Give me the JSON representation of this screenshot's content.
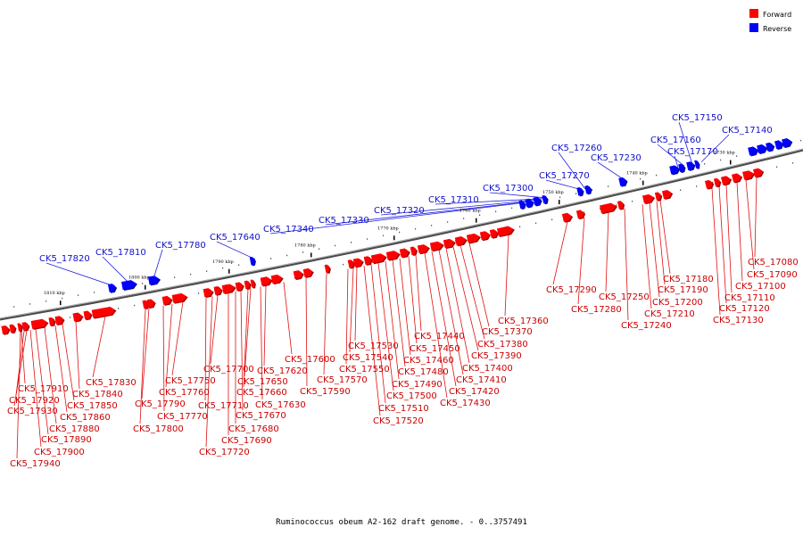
{
  "title": "Ruminococcus obeum A2-162 draft genome. - 0..3757491",
  "legend": [
    {
      "label": "Forward",
      "color": "#ff0000"
    },
    {
      "label": "Reverse",
      "color": "#0000ff"
    }
  ],
  "colors": {
    "forward": "#ff0000",
    "reverse": "#0000ff",
    "backbone": "#808080"
  },
  "scale_labels": [
    "1730 kbp",
    "1740 kbp",
    "1750 kbp",
    "1760 kbp",
    "1770 kbp",
    "1780 kbp",
    "1790 kbp",
    "1800 kbp",
    "1810 kbp"
  ],
  "reverse_labels": [
    "CK5_17820",
    "CK5_17810",
    "CK5_17780",
    "CK5_17640",
    "CK5_17340",
    "CK5_17330",
    "CK5_17320",
    "CK5_17310",
    "CK5_17300",
    "CK5_17270",
    "CK5_17260",
    "CK5_17230",
    "CK5_17170",
    "CK5_17160",
    "CK5_17150",
    "CK5_17140"
  ],
  "forward_labels": [
    "CK5_17910",
    "CK5_17920",
    "CK5_17930",
    "CK5_17940",
    "CK5_17900",
    "CK5_17890",
    "CK5_17880",
    "CK5_17860",
    "CK5_17850",
    "CK5_17840",
    "CK5_17830",
    "CK5_17800",
    "CK5_17790",
    "CK5_17770",
    "CK5_17760",
    "CK5_17750",
    "CK5_17720",
    "CK5_17710",
    "CK5_17700",
    "CK5_17690",
    "CK5_17680",
    "CK5_17670",
    "CK5_17660",
    "CK5_17650",
    "CK5_17630",
    "CK5_17620",
    "CK5_17600",
    "CK5_17590",
    "CK5_17570",
    "CK5_17550",
    "CK5_17540",
    "CK5_17530",
    "CK5_17520",
    "CK5_17510",
    "CK5_17500",
    "CK5_17490",
    "CK5_17480",
    "CK5_17460",
    "CK5_17450",
    "CK5_17440",
    "CK5_17430",
    "CK5_17420",
    "CK5_17410",
    "CK5_17400",
    "CK5_17390",
    "CK5_17380",
    "CK5_17370",
    "CK5_17360",
    "CK5_17290",
    "CK5_17280",
    "CK5_17250",
    "CK5_17240",
    "CK5_17210",
    "CK5_17200",
    "CK5_17190",
    "CK5_17180",
    "CK5_17130",
    "CK5_17120",
    "CK5_17110",
    "CK5_17100",
    "CK5_17090",
    "CK5_17080"
  ]
}
